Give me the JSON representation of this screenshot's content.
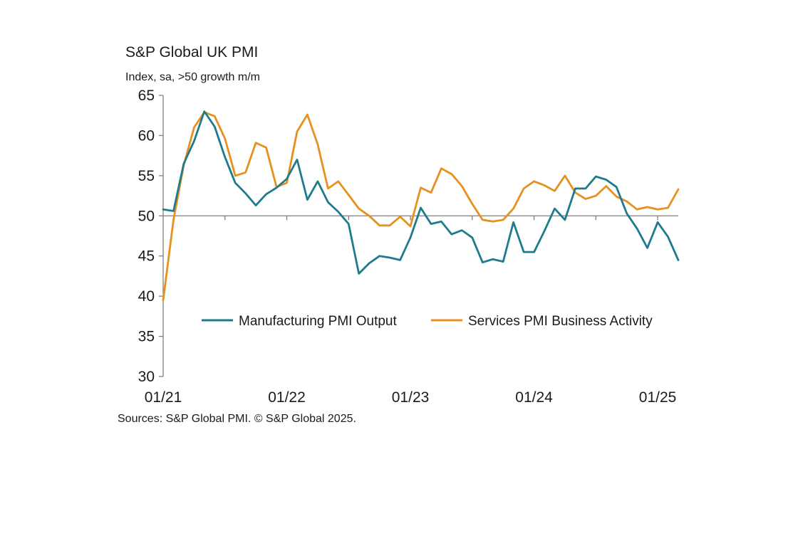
{
  "chart_data": {
    "type": "line",
    "title": "S&P Global UK PMI",
    "subtitle": "Index, sa, >50 growth m/m",
    "source": "Sources: S&P Global PMI. © S&P Global 2025.",
    "ylim": [
      30,
      65
    ],
    "yticks": [
      "30",
      "35",
      "40",
      "45",
      "50",
      "55",
      "60",
      "65"
    ],
    "xlim": [
      0,
      50
    ],
    "xticks": [
      {
        "label": "01/21",
        "x": 0
      },
      {
        "label": "01/22",
        "x": 12
      },
      {
        "label": "01/23",
        "x": 24
      },
      {
        "label": "01/24",
        "x": 36
      },
      {
        "label": "01/25",
        "x": 48
      }
    ],
    "reference_line": 50,
    "legend_position": "center-right",
    "series": [
      {
        "name": "Manufacturing PMI Output",
        "color": "#1e7b8e",
        "values": [
          50.8,
          50.6,
          56.5,
          59.3,
          63.0,
          61.1,
          57.3,
          54.1,
          52.8,
          51.3,
          52.7,
          53.5,
          54.6,
          57.0,
          52.0,
          54.3,
          51.7,
          50.5,
          49.0,
          42.8,
          44.1,
          45.0,
          44.8,
          44.5,
          47.3,
          51.0,
          49.0,
          49.3,
          47.7,
          48.2,
          47.3,
          44.2,
          44.6,
          44.3,
          49.2,
          45.5,
          45.5,
          48.1,
          50.9,
          49.5,
          53.4,
          53.4,
          54.9,
          54.5,
          53.6,
          50.3,
          48.4,
          46.0,
          49.2,
          47.4,
          44.5
        ]
      },
      {
        "name": "Services PMI Business Activity",
        "color": "#e8901e",
        "values": [
          39.5,
          49.5,
          56.3,
          61.0,
          62.9,
          62.4,
          59.6,
          55.0,
          55.4,
          59.1,
          58.5,
          53.6,
          54.1,
          60.5,
          62.6,
          58.9,
          53.4,
          54.3,
          52.6,
          50.9,
          50.0,
          48.8,
          48.8,
          49.9,
          48.7,
          53.5,
          52.9,
          55.9,
          55.2,
          53.7,
          51.5,
          49.5,
          49.3,
          49.5,
          50.9,
          53.4,
          54.3,
          53.8,
          53.1,
          55.0,
          52.9,
          52.1,
          52.5,
          53.7,
          52.4,
          51.8,
          50.8,
          51.1,
          50.8,
          51.0,
          53.3
        ]
      }
    ]
  }
}
